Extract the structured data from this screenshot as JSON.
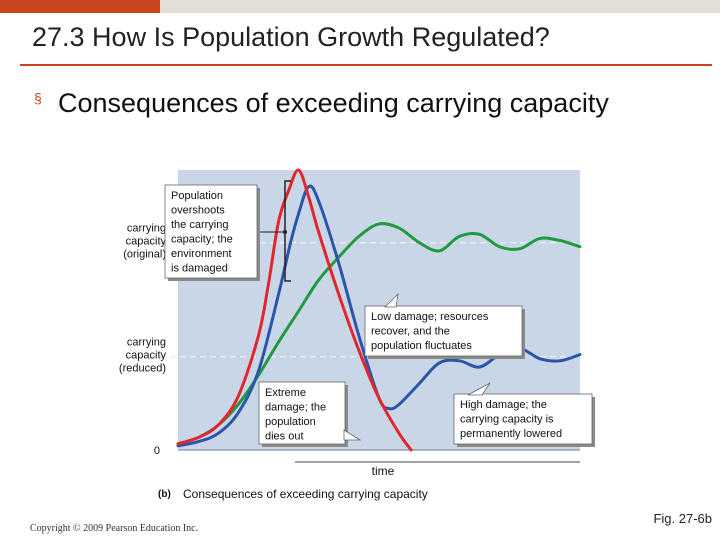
{
  "slide": {
    "title": "27.3 How Is Population Growth Regulated?",
    "bullet": "Consequences of exceeding carrying capacity",
    "copyright": "Copyright © 2009 Pearson Education Inc.",
    "figure_ref": "Fig. 27-6b"
  },
  "colors": {
    "accent": "#c8461f",
    "plot_background": "#c9d6e8",
    "green": "#1f9a3c",
    "red": "#e3262b",
    "blue": "#2a55a8"
  },
  "chart_data": {
    "type": "line",
    "panel_label": "(b)",
    "caption": "Consequences of exceeding carrying capacity",
    "xlabel": "time",
    "y_tick_labels": [
      {
        "text": "carrying capacity (original)",
        "lines": [
          "carrying",
          "capacity",
          "(original)"
        ]
      },
      {
        "text": "carrying capacity (reduced)",
        "lines": [
          "carrying",
          "capacity",
          "(reduced)"
        ]
      },
      {
        "text": "0",
        "lines": [
          "0"
        ]
      }
    ],
    "ylim": [
      0,
      1.35
    ],
    "xlim": [
      0,
      100
    ],
    "reference_levels": {
      "original": 1.0,
      "reduced": 0.45
    },
    "series": [
      {
        "color": "green",
        "description": "Low damage; the population fluctuates about the original carrying capacity",
        "x": [
          0,
          5,
          10,
          15,
          20,
          25,
          30,
          35,
          40,
          45,
          50,
          55,
          60,
          65,
          70,
          75,
          80,
          85,
          90,
          95,
          100
        ],
        "y": [
          0.03,
          0.06,
          0.12,
          0.22,
          0.36,
          0.52,
          0.67,
          0.82,
          0.93,
          1.03,
          1.09,
          1.07,
          1.0,
          0.96,
          1.03,
          1.04,
          0.98,
          0.97,
          1.02,
          1.01,
          0.98
        ]
      },
      {
        "color": "red",
        "description": "Extreme damage; the population dies out",
        "x": [
          0,
          5,
          10,
          15,
          20,
          22.5,
          25,
          27.5,
          30,
          32.5,
          35,
          40,
          45,
          50,
          55,
          58
        ],
        "y": [
          0.03,
          0.06,
          0.12,
          0.26,
          0.55,
          0.8,
          1.1,
          1.25,
          1.35,
          1.22,
          1.05,
          0.75,
          0.48,
          0.25,
          0.08,
          0.0
        ]
      },
      {
        "color": "blue",
        "description": "High damage; the carrying capacity is permanently lowered",
        "x": [
          0,
          5,
          10,
          15,
          20,
          25,
          28,
          30,
          32.5,
          35,
          40,
          45,
          50,
          52.5,
          55,
          60,
          65,
          70,
          75,
          80,
          85,
          90,
          95,
          100
        ],
        "y": [
          0.02,
          0.04,
          0.08,
          0.18,
          0.38,
          0.75,
          1.0,
          1.14,
          1.27,
          1.2,
          0.9,
          0.55,
          0.25,
          0.2,
          0.22,
          0.32,
          0.42,
          0.43,
          0.4,
          0.46,
          0.49,
          0.44,
          0.43,
          0.46
        ]
      }
    ],
    "annotations": [
      "Population overshoots the carrying capacity; the environment is damaged",
      "Low damage; resources recover, and the population fluctuates",
      "Extreme damage; the population dies out",
      "High damage; the carrying capacity is permanently lowered"
    ]
  }
}
